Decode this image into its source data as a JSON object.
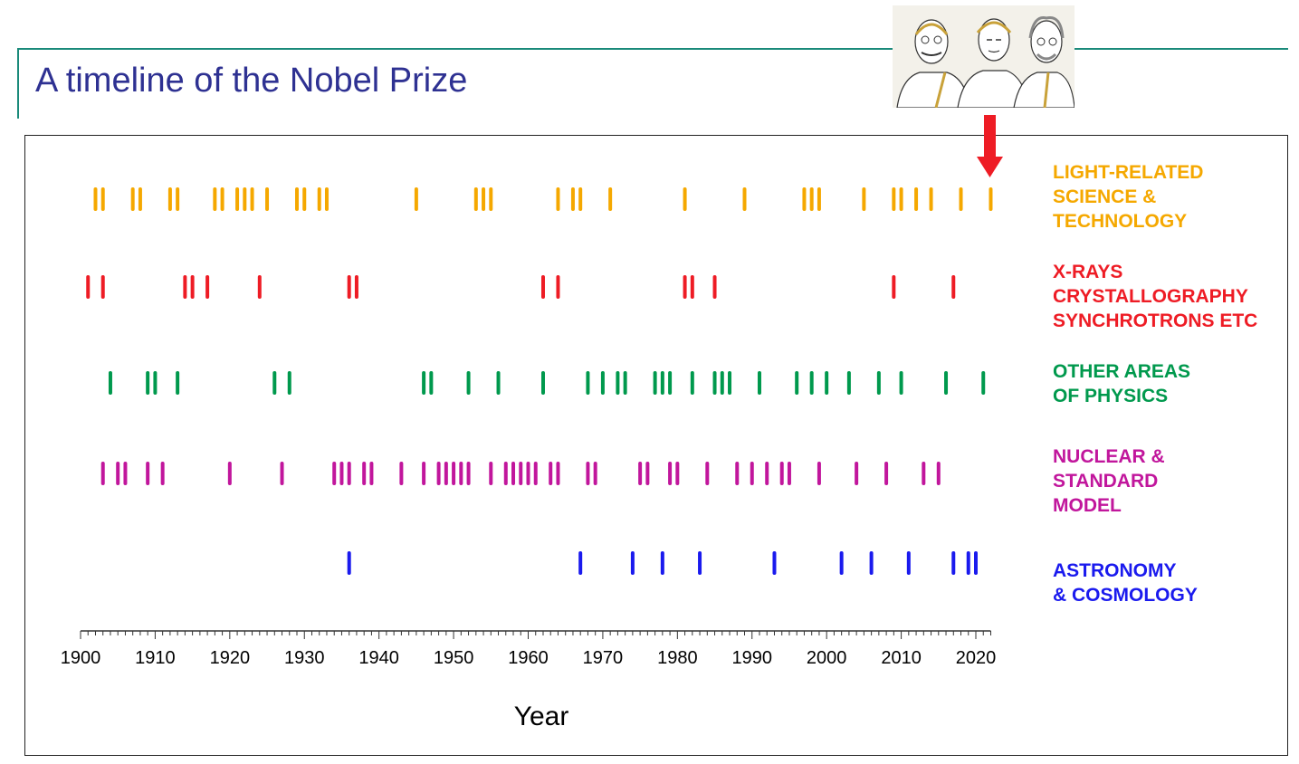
{
  "page": {
    "title": "A timeline of the Nobel Prize"
  },
  "chart_data": {
    "type": "scatter",
    "title": "A timeline of the Nobel Prize",
    "xlabel": "Year",
    "ylabel": "",
    "xlim": [
      1900,
      2022
    ],
    "x_ticks": [
      1900,
      1910,
      1920,
      1930,
      1940,
      1950,
      1960,
      1970,
      1980,
      1990,
      2000,
      2010,
      2020
    ],
    "grid": false,
    "legend_placement": "right",
    "annotation": "arrow pointing to 2022 light-related prize, with portrait illustration of the laureates",
    "series": [
      {
        "key": "light",
        "name_lines": [
          "LIGHT-RELATED",
          "SCIENCE &",
          "TECHNOLOGY"
        ],
        "color": "#f5a800",
        "years": [
          1902,
          1903,
          1907,
          1908,
          1912,
          1913,
          1918,
          1919,
          1921,
          1922,
          1923,
          1925,
          1929,
          1930,
          1932,
          1933,
          1945,
          1953,
          1954,
          1955,
          1964,
          1966,
          1967,
          1971,
          1981,
          1989,
          1997,
          1998,
          1999,
          2005,
          2009,
          2010,
          2012,
          2014,
          2018,
          2022
        ]
      },
      {
        "key": "xray",
        "name_lines": [
          "X-RAYS",
          "CRYSTALLOGRAPHY",
          "SYNCHROTRONS ETC"
        ],
        "color": "#ee1c25",
        "years": [
          1901,
          1903,
          1914,
          1915,
          1917,
          1924,
          1936,
          1937,
          1962,
          1964,
          1981,
          1982,
          1985,
          2009,
          2017
        ]
      },
      {
        "key": "other",
        "name_lines": [
          "OTHER AREAS",
          "OF PHYSICS"
        ],
        "color": "#00994d",
        "years": [
          1904,
          1909,
          1910,
          1913,
          1926,
          1928,
          1946,
          1947,
          1952,
          1956,
          1962,
          1968,
          1970,
          1972,
          1973,
          1977,
          1978,
          1979,
          1982,
          1985,
          1986,
          1987,
          1991,
          1996,
          1998,
          2000,
          2003,
          2007,
          2010,
          2016,
          2021
        ]
      },
      {
        "key": "nuclear",
        "name_lines": [
          "NUCLEAR &",
          "STANDARD",
          "MODEL"
        ],
        "color": "#c1169c",
        "years": [
          1903,
          1905,
          1906,
          1909,
          1911,
          1920,
          1927,
          1934,
          1935,
          1936,
          1938,
          1939,
          1943,
          1946,
          1948,
          1949,
          1950,
          1951,
          1952,
          1955,
          1957,
          1958,
          1959,
          1960,
          1961,
          1963,
          1964,
          1968,
          1969,
          1975,
          1976,
          1979,
          1980,
          1984,
          1988,
          1990,
          1992,
          1994,
          1995,
          1999,
          2004,
          2008,
          2013,
          2015
        ]
      },
      {
        "key": "astro",
        "name_lines": [
          "ASTRONOMY",
          "& COSMOLOGY"
        ],
        "color": "#1a1aee",
        "years": [
          1936,
          1967,
          1974,
          1978,
          1983,
          1993,
          2002,
          2006,
          2011,
          2017,
          2019,
          2020
        ]
      }
    ]
  },
  "colors": {
    "arrow": "#ee1c25",
    "title": "#2e3192",
    "frame": "#1a8a7a"
  },
  "icons": {
    "portrait": "laureates-portrait-illustration",
    "arrow": "arrow-down-icon"
  }
}
